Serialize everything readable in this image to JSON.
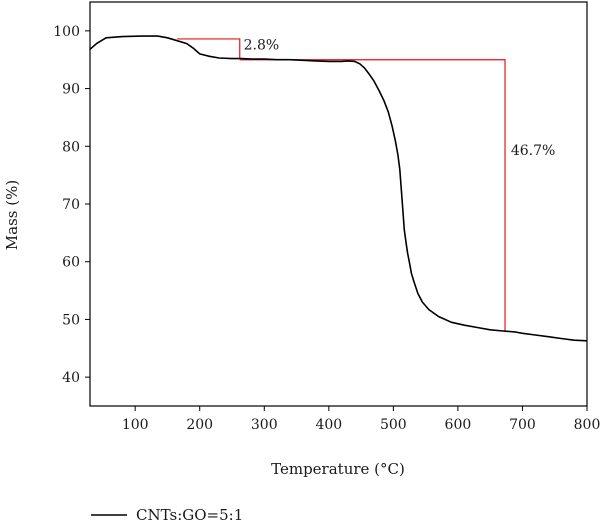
{
  "chart_data": {
    "type": "line",
    "xlabel": "Temperature (°C)",
    "ylabel": "Mass (%)",
    "xlim": [
      30,
      800
    ],
    "ylim": [
      35,
      105
    ],
    "xticks": [
      100,
      200,
      300,
      400,
      500,
      600,
      700,
      800
    ],
    "yticks": [
      40,
      50,
      60,
      70,
      80,
      90,
      100
    ],
    "grid": false,
    "legend_position": "bottom-left",
    "series": [
      {
        "name": "CNTs:GO=5:1",
        "color": "#000000",
        "x": [
          30,
          40,
          55,
          80,
          110,
          135,
          150,
          165,
          180,
          190,
          200,
          215,
          230,
          250,
          265,
          280,
          300,
          320,
          340,
          360,
          380,
          400,
          420,
          430,
          440,
          448,
          455,
          462,
          470,
          478,
          485,
          492,
          498,
          503,
          507,
          510,
          512,
          514,
          517,
          520,
          522,
          525,
          528,
          532,
          538,
          545,
          555,
          570,
          590,
          610,
          630,
          650,
          670,
          680,
          690,
          700,
          720,
          740,
          760,
          780,
          800
        ],
        "y": [
          96.8,
          97.8,
          98.8,
          99.0,
          99.1,
          99.1,
          98.8,
          98.3,
          97.8,
          97.0,
          96.0,
          95.6,
          95.3,
          95.2,
          95.2,
          95.1,
          95.1,
          95.0,
          95.0,
          94.9,
          94.8,
          94.7,
          94.7,
          94.8,
          94.7,
          94.3,
          93.6,
          92.6,
          91.3,
          89.6,
          88.0,
          86.0,
          83.5,
          81.0,
          78.5,
          76.0,
          73.0,
          70.0,
          65.5,
          63.0,
          61.5,
          59.8,
          58.0,
          56.5,
          54.5,
          53.0,
          51.7,
          50.5,
          49.5,
          49.0,
          48.6,
          48.2,
          48.0,
          47.9,
          47.8,
          47.6,
          47.3,
          47.0,
          46.7,
          46.4,
          46.3
        ]
      }
    ],
    "annotations": [
      {
        "label": "2.8%",
        "color": "#e0151b",
        "bracket": {
          "x_start": 165,
          "x_end": 262,
          "y_top": 98.6,
          "y_bottom": 95.2
        },
        "text_x": 268,
        "text_y": 96.8
      },
      {
        "label": "46.7%",
        "color": "#e0151b",
        "bracket": {
          "x_start": 262,
          "x_end": 673,
          "y_top": 95.0,
          "y_bottom": 47.9
        },
        "text_x": 682,
        "text_y": 78.5
      }
    ]
  }
}
